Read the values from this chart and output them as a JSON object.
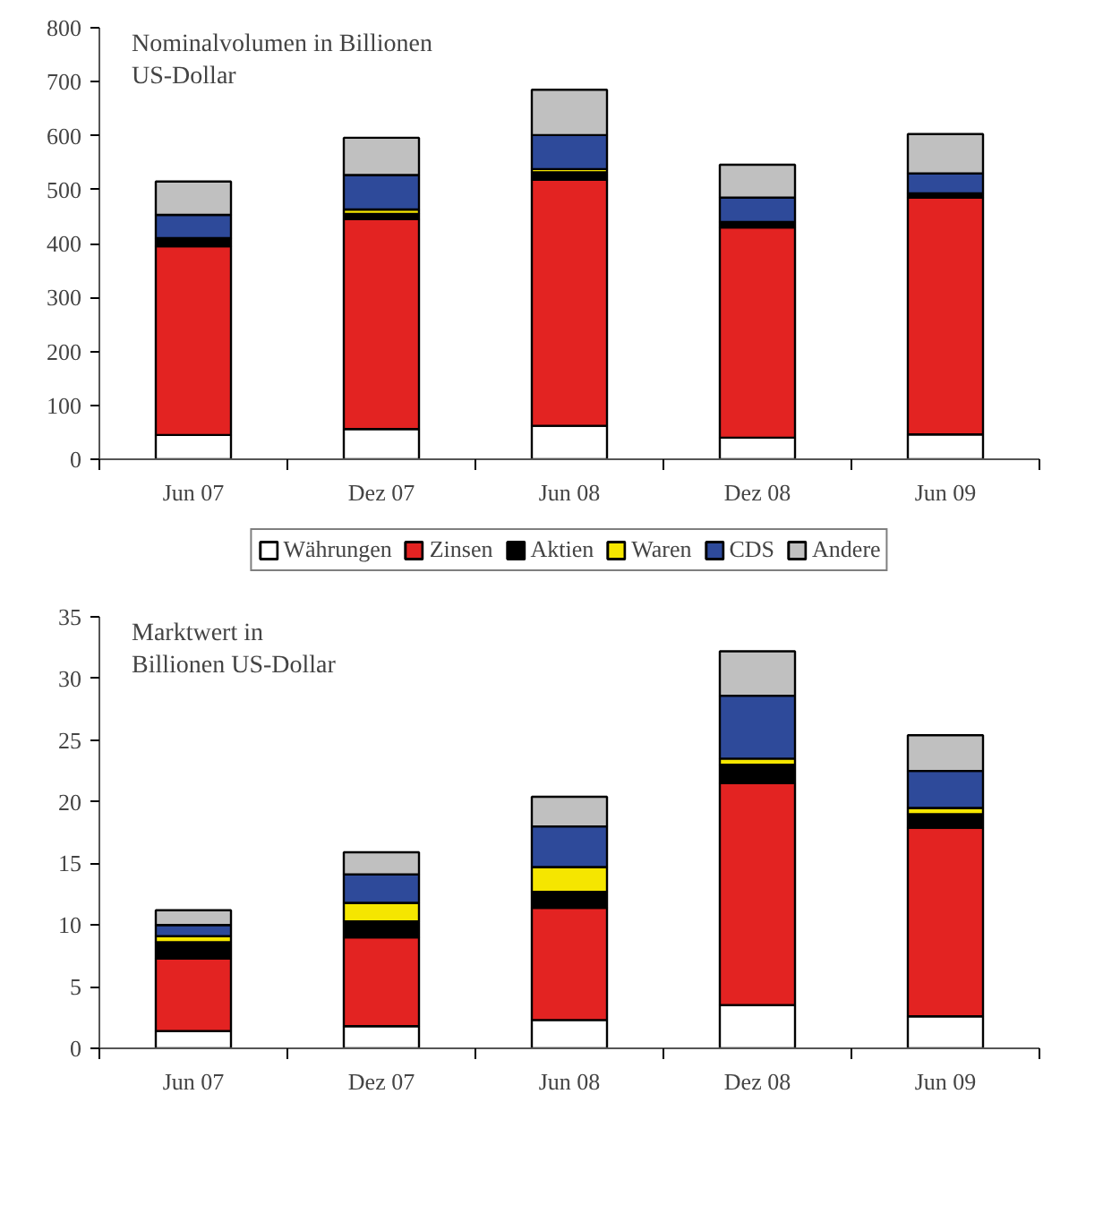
{
  "chart_data": [
    {
      "type": "bar",
      "stacked": true,
      "title": "Nominalvolumen in Billionen\nUS-Dollar",
      "categories": [
        "Jun 07",
        "Dez 07",
        "Jun 08",
        "Dez 08",
        "Jun 09"
      ],
      "ylim": [
        0,
        800
      ],
      "yticks": [
        0,
        100,
        200,
        300,
        400,
        500,
        600,
        700,
        800
      ],
      "grid": false,
      "legend": "bottom",
      "series": [
        {
          "name": "Währungen",
          "color": "#ffffff",
          "values": [
            45,
            56,
            62,
            40,
            46
          ]
        },
        {
          "name": "Zinsen",
          "color": "#e32322",
          "values": [
            350,
            389,
            456,
            390,
            439
          ]
        },
        {
          "name": "Aktien",
          "color": "#000000",
          "values": [
            15,
            10,
            14,
            10,
            8
          ]
        },
        {
          "name": "Waren",
          "color": "#f5e600",
          "values": [
            null,
            8,
            6,
            null,
            null
          ]
        },
        {
          "name": "CDS",
          "color": "#2e4a9a",
          "values": [
            43,
            64,
            63,
            45,
            37
          ]
        },
        {
          "name": "Andere",
          "color": "#c0c0c0",
          "values": [
            62,
            69,
            84,
            61,
            73
          ]
        }
      ]
    },
    {
      "type": "bar",
      "stacked": true,
      "title": "Marktwert in\nBillionen US-Dollar",
      "categories": [
        "Jun 07",
        "Dez 07",
        "Jun 08",
        "Dez 08",
        "Jun 09"
      ],
      "ylim": [
        0,
        35
      ],
      "yticks": [
        0,
        5,
        10,
        15,
        20,
        25,
        30,
        35
      ],
      "grid": false,
      "series": [
        {
          "color": "#ffffff",
          "values": [
            1.4,
            1.8,
            2.3,
            3.5,
            2.6
          ]
        },
        {
          "color": "#e32322",
          "values": [
            5.9,
            7.2,
            9.1,
            18.0,
            15.3
          ]
        },
        {
          "color": "#000000",
          "values": [
            1.3,
            1.3,
            1.3,
            1.5,
            1.1
          ]
        },
        {
          "color": "#f5e600",
          "values": [
            0.5,
            1.5,
            2.0,
            0.5,
            0.5
          ]
        },
        {
          "color": "#2e4a9a",
          "values": [
            0.9,
            2.3,
            3.3,
            5.1,
            3.0
          ]
        },
        {
          "color": "#c0c0c0",
          "values": [
            1.2,
            1.8,
            2.4,
            3.6,
            2.9
          ]
        }
      ]
    }
  ]
}
